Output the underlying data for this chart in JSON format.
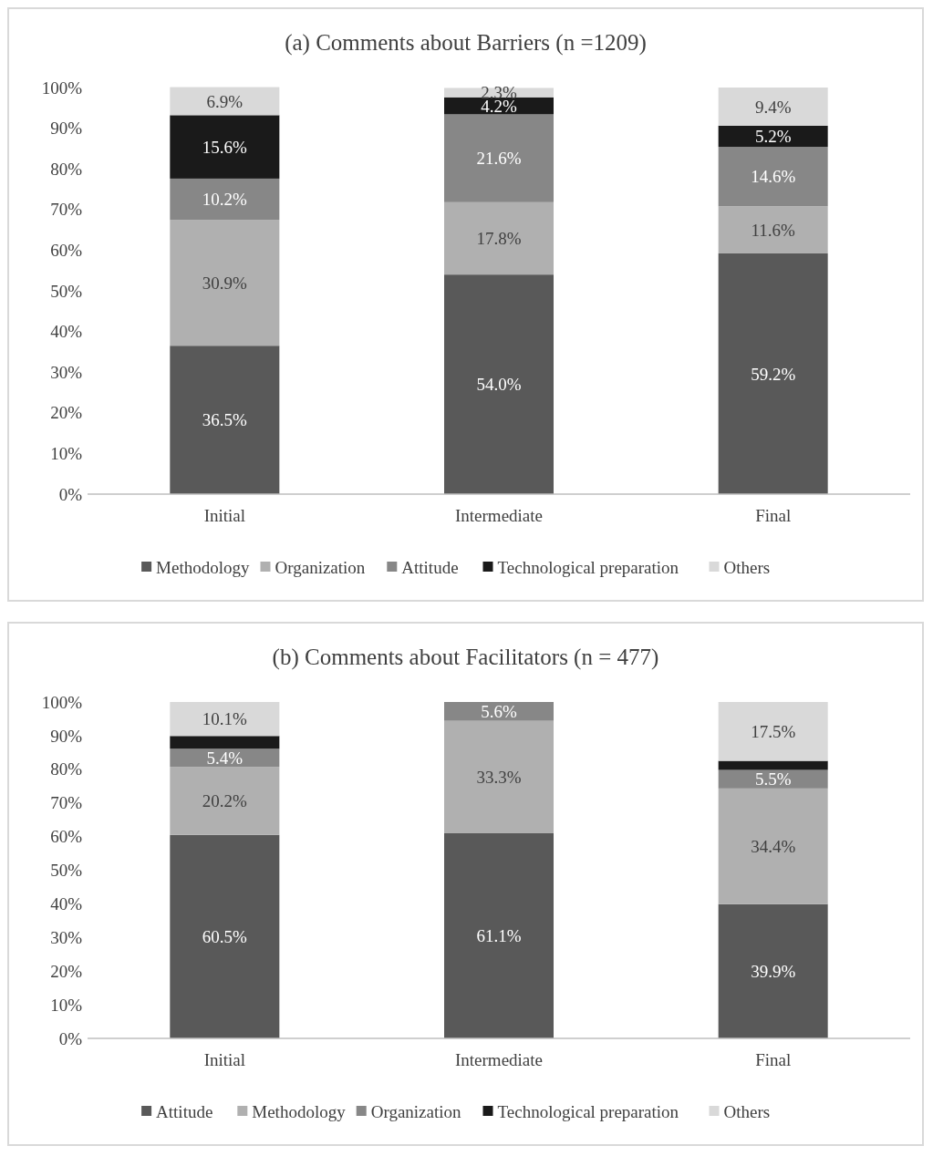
{
  "chart_data": [
    {
      "type": "bar",
      "title": "(a) Comments about Barriers (n =1209)",
      "stacked": true,
      "legend": "bottom",
      "categories": [
        "Initial",
        "Intermediate",
        "Final"
      ],
      "ylim": [
        0,
        100
      ],
      "yticks": [
        {
          "value": 0,
          "label": "0%"
        },
        {
          "value": 10,
          "label": "10%"
        },
        {
          "value": 20,
          "label": "20%"
        },
        {
          "value": 30,
          "label": "30%"
        },
        {
          "value": 40,
          "label": "40%"
        },
        {
          "value": 50,
          "label": "50%"
        },
        {
          "value": 60,
          "label": "60%"
        },
        {
          "value": 70,
          "label": "70%"
        },
        {
          "value": 80,
          "label": "80%"
        },
        {
          "value": 90,
          "label": "90%"
        },
        {
          "value": 100,
          "label": "100%"
        }
      ],
      "series": [
        {
          "name": "Methodology",
          "color": "#595959",
          "values": [
            36.5,
            54.0,
            59.2
          ],
          "value_labels": [
            "36.5%",
            "54.0%",
            "59.2%"
          ]
        },
        {
          "name": "Organization",
          "color": "#b0b0b0",
          "values": [
            30.9,
            17.8,
            11.6
          ],
          "value_labels": [
            "30.9%",
            "17.8%",
            "11.6%"
          ]
        },
        {
          "name": "Attitude",
          "color": "#878787",
          "values": [
            10.2,
            21.6,
            14.6
          ],
          "value_labels": [
            "10.2%",
            "21.6%",
            "14.6%"
          ]
        },
        {
          "name": "Technological preparation",
          "color": "#1a1a1a",
          "values": [
            15.6,
            4.2,
            5.2
          ],
          "value_labels": [
            "15.6%",
            "4.2%",
            "5.2%"
          ]
        },
        {
          "name": "Others",
          "color": "#d9d9d9",
          "values": [
            6.9,
            2.3,
            9.4
          ],
          "value_labels": [
            "6.9%",
            "2.3%",
            "9.4%"
          ]
        }
      ]
    },
    {
      "type": "bar",
      "title": "(b) Comments about Facilitators (n = 477)",
      "stacked": true,
      "legend": "bottom",
      "categories": [
        "Initial",
        "Intermediate",
        "Final"
      ],
      "ylim": [
        0,
        100
      ],
      "yticks": [
        {
          "value": 0,
          "label": "0%"
        },
        {
          "value": 10,
          "label": "10%"
        },
        {
          "value": 20,
          "label": "20%"
        },
        {
          "value": 30,
          "label": "30%"
        },
        {
          "value": 40,
          "label": "40%"
        },
        {
          "value": 50,
          "label": "50%"
        },
        {
          "value": 60,
          "label": "60%"
        },
        {
          "value": 70,
          "label": "70%"
        },
        {
          "value": 80,
          "label": "80%"
        },
        {
          "value": 90,
          "label": "90%"
        },
        {
          "value": 100,
          "label": "100%"
        }
      ],
      "series": [
        {
          "name": "Attitude",
          "color": "#595959",
          "values": [
            60.5,
            61.1,
            39.9
          ],
          "value_labels": [
            "60.5%",
            "61.1%",
            "39.9%"
          ]
        },
        {
          "name": "Methodology",
          "color": "#b0b0b0",
          "values": [
            20.2,
            33.3,
            34.4
          ],
          "value_labels": [
            "20.2%",
            "33.3%",
            "34.4%"
          ]
        },
        {
          "name": "Organization",
          "color": "#878787",
          "values": [
            5.4,
            5.6,
            5.5
          ],
          "value_labels": [
            "5.4%",
            "5.6%",
            "5.5%"
          ]
        },
        {
          "name": "Technological preparation",
          "color": "#1a1a1a",
          "values": [
            3.8,
            0,
            2.7
          ],
          "value_labels": [
            null,
            null,
            null
          ]
        },
        {
          "name": "Others",
          "color": "#d9d9d9",
          "values": [
            10.1,
            0,
            17.5
          ],
          "value_labels": [
            "10.1%",
            null,
            "17.5%"
          ]
        }
      ]
    }
  ]
}
